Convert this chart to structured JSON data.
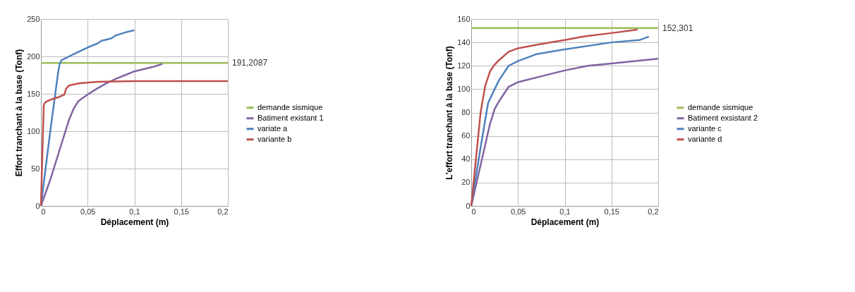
{
  "chart_data": [
    {
      "type": "line",
      "xlabel": "Déplacement (m)",
      "ylabel": "Effort tranchant à la base (Tonf)",
      "xlim": [
        0,
        0.2
      ],
      "xticks": [
        {
          "value": 0,
          "label": "0"
        },
        {
          "value": 0.05,
          "label": "0,05"
        },
        {
          "value": 0.1,
          "label": "0,1"
        },
        {
          "value": 0.15,
          "label": "0,15"
        },
        {
          "value": 0.2,
          "label": "0,2"
        }
      ],
      "ylim": [
        0,
        250
      ],
      "yticks": [
        0,
        50,
        100,
        150,
        200,
        250
      ],
      "grid": true,
      "legend": "right",
      "marker": "none",
      "series": [
        {
          "name": "demande sismique",
          "color": "#9bbb59",
          "x": [
            0,
            0.2
          ],
          "values": [
            191.2087,
            191.2087
          ]
        },
        {
          "name": "Batiment existant 1",
          "color": "#8064a2",
          "x": [
            0,
            0.01,
            0.02,
            0.03,
            0.035,
            0.04,
            0.05,
            0.06,
            0.07,
            0.08,
            0.09,
            0.1,
            0.11,
            0.12,
            0.13
          ],
          "values": [
            0,
            35,
            75,
            115,
            130,
            140,
            149,
            157,
            164,
            170,
            175,
            180,
            183,
            186,
            190
          ]
        },
        {
          "name": "variate a",
          "color": "#4f81bd",
          "x": [
            0,
            0.01,
            0.018,
            0.02,
            0.022,
            0.03,
            0.04,
            0.05,
            0.06,
            0.065,
            0.075,
            0.08,
            0.09,
            0.1
          ],
          "values": [
            0,
            100,
            175,
            190,
            195,
            200,
            206,
            212,
            217,
            221,
            224,
            228,
            232,
            235
          ]
        },
        {
          "name": "variante b",
          "color": "#c0504d",
          "x": [
            0,
            0.003,
            0.005,
            0.01,
            0.02,
            0.025,
            0.027,
            0.03,
            0.04,
            0.06,
            0.1,
            0.2
          ],
          "values": [
            0,
            135,
            139,
            142,
            146,
            149,
            157,
            161,
            164,
            166,
            167,
            167
          ]
        }
      ],
      "annotations": [
        "191,2087"
      ]
    },
    {
      "type": "line",
      "xlabel": "Déplacement (m)",
      "ylabel": "L'effort tranchant à la base (Tonf)",
      "xlim": [
        0,
        0.2
      ],
      "xticks": [
        {
          "value": 0,
          "label": "0"
        },
        {
          "value": 0.05,
          "label": "0,05"
        },
        {
          "value": 0.1,
          "label": "0,1"
        },
        {
          "value": 0.15,
          "label": "0,15"
        },
        {
          "value": 0.2,
          "label": "0,2"
        }
      ],
      "ylim": [
        0,
        160
      ],
      "yticks": [
        0,
        20,
        40,
        60,
        80,
        100,
        120,
        140,
        160
      ],
      "grid": true,
      "legend": "right",
      "marker": "none",
      "series": [
        {
          "name": "demande sismique",
          "color": "#9bbb59",
          "x": [
            0,
            0.2
          ],
          "values": [
            152.301,
            152.301
          ]
        },
        {
          "name": "Batiment exsistant 2",
          "color": "#8064a2",
          "x": [
            0,
            0.01,
            0.02,
            0.025,
            0.03,
            0.04,
            0.05,
            0.075,
            0.1,
            0.125,
            0.15,
            0.2
          ],
          "values": [
            0,
            35,
            70,
            83,
            90,
            102,
            106,
            111,
            116,
            120,
            122,
            126
          ]
        },
        {
          "name": "variante c",
          "color": "#4f81bd",
          "x": [
            0,
            0.01,
            0.018,
            0.025,
            0.03,
            0.04,
            0.05,
            0.07,
            0.1,
            0.15,
            0.18,
            0.19
          ],
          "values": [
            0,
            50,
            88,
            100,
            108,
            120,
            124,
            130,
            134,
            140,
            142,
            145
          ]
        },
        {
          "name": "variante d",
          "color": "#c0504d",
          "x": [
            0,
            0.01,
            0.015,
            0.02,
            0.025,
            0.03,
            0.04,
            0.05,
            0.07,
            0.1,
            0.12,
            0.15,
            0.178
          ],
          "values": [
            0,
            80,
            103,
            115,
            121,
            125,
            132,
            135,
            138,
            142,
            145,
            148,
            151
          ]
        }
      ],
      "annotations": [
        "152,301"
      ]
    }
  ]
}
